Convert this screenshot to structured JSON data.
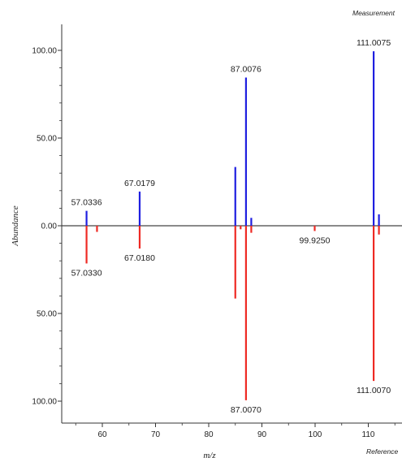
{
  "chart_data": {
    "type": "bar",
    "subtype": "mirror-spectrum",
    "xlabel": "m/z",
    "ylabel": "Abundance",
    "top_label": "Measurement",
    "bottom_label": "Reference",
    "xlim": [
      52,
      116
    ],
    "ylim": [
      -100,
      100
    ],
    "x_ticks": [
      60,
      70,
      80,
      90,
      100,
      110
    ],
    "x_tick_labels": [
      "60",
      "70",
      "80",
      "90",
      "100",
      "110"
    ],
    "y_ticks": [
      100,
      50,
      0,
      -50,
      -100
    ],
    "y_tick_labels": [
      "100.00",
      "50.00",
      "0.00",
      "50.00",
      "100.00"
    ],
    "series": [
      {
        "name": "Measurement",
        "color": "#1f1fe0",
        "peaks": [
          {
            "x": 57.0336,
            "y": 8.5,
            "label": "57.0336"
          },
          {
            "x": 67.0179,
            "y": 19.5,
            "label": "67.0179"
          },
          {
            "x": 85.0,
            "y": 33.5,
            "label": ""
          },
          {
            "x": 87.0076,
            "y": 84.5,
            "label": "87.0076"
          },
          {
            "x": 88.0,
            "y": 4.5,
            "label": ""
          },
          {
            "x": 111.0075,
            "y": 99.5,
            "label": "111.0075"
          },
          {
            "x": 112.0,
            "y": 6.5,
            "label": ""
          }
        ]
      },
      {
        "name": "Reference",
        "color": "#ee2a24",
        "peaks": [
          {
            "x": 57.033,
            "y": -21.5,
            "label": "57.0330"
          },
          {
            "x": 59.0,
            "y": -3.5,
            "label": ""
          },
          {
            "x": 67.018,
            "y": -13.0,
            "label": "67.0180"
          },
          {
            "x": 85.0,
            "y": -41.5,
            "label": ""
          },
          {
            "x": 86.0,
            "y": -2.0,
            "label": ""
          },
          {
            "x": 87.007,
            "y": -99.5,
            "label": "87.0070"
          },
          {
            "x": 88.0,
            "y": -4.0,
            "label": ""
          },
          {
            "x": 99.925,
            "y": -3.0,
            "label": "99.9250"
          },
          {
            "x": 111.007,
            "y": -88.5,
            "label": "111.0070"
          },
          {
            "x": 112.0,
            "y": -5.0,
            "label": ""
          }
        ]
      }
    ],
    "grid": false,
    "legend": "none"
  }
}
